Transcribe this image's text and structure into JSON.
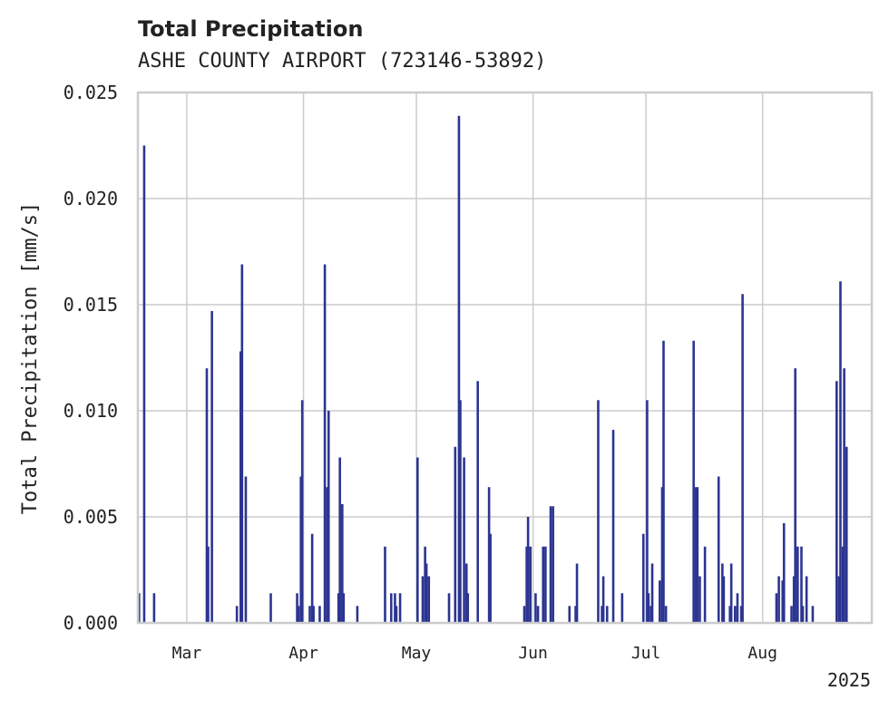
{
  "chart_data": {
    "type": "bar",
    "title": "Total Precipitation",
    "subtitle": "ASHE COUNTY AIRPORT (723146-53892)",
    "xlabel": "",
    "ylabel": "Total Precipitation [mm/s]",
    "x_year_label": "2025",
    "x_range": [
      "2025-02-16",
      "2025-08-29"
    ],
    "ylim": [
      0,
      0.025
    ],
    "yticks": [
      "0.000",
      "0.005",
      "0.010",
      "0.015",
      "0.020",
      "0.025"
    ],
    "xticks": [
      {
        "date": "2025-03-01",
        "label": "Mar"
      },
      {
        "date": "2025-04-01",
        "label": "Apr"
      },
      {
        "date": "2025-05-01",
        "label": "May"
      },
      {
        "date": "2025-06-01",
        "label": "Jun"
      },
      {
        "date": "2025-07-01",
        "label": "Jul"
      },
      {
        "date": "2025-08-01",
        "label": "Aug"
      }
    ],
    "grid": true,
    "series": [
      {
        "color": "#2c3590",
        "points": [
          [
            "2025-02-16",
            0.0014
          ],
          [
            "2025-02-17",
            0.0225
          ],
          [
            "2025-02-20",
            0.0014
          ],
          [
            "2025-03-06",
            0.0036
          ],
          [
            "2025-03-06",
            0.012
          ],
          [
            "2025-03-07",
            0.0147
          ],
          [
            "2025-03-14",
            0.0008
          ],
          [
            "2025-03-15",
            0.0169
          ],
          [
            "2025-03-15",
            0.0128
          ],
          [
            "2025-03-16",
            0.0069
          ],
          [
            "2025-03-23",
            0.0014
          ],
          [
            "2025-03-30",
            0.0008
          ],
          [
            "2025-03-30",
            0.0014
          ],
          [
            "2025-03-31",
            0.0105
          ],
          [
            "2025-03-31",
            0.0069
          ],
          [
            "2025-04-02",
            0.0008
          ],
          [
            "2025-04-03",
            0.0042
          ],
          [
            "2025-04-03",
            0.0008
          ],
          [
            "2025-04-05",
            0.0008
          ],
          [
            "2025-04-06",
            0.0169
          ],
          [
            "2025-04-07",
            0.0064
          ],
          [
            "2025-04-07",
            0.01
          ],
          [
            "2025-04-10",
            0.0014
          ],
          [
            "2025-04-10",
            0.0078
          ],
          [
            "2025-04-11",
            0.0056
          ],
          [
            "2025-04-11",
            0.0014
          ],
          [
            "2025-04-15",
            0.0008
          ],
          [
            "2025-04-22",
            0.0036
          ],
          [
            "2025-04-24",
            0.0014
          ],
          [
            "2025-04-25",
            0.0008
          ],
          [
            "2025-04-25",
            0.0014
          ],
          [
            "2025-04-26",
            0.0014
          ],
          [
            "2025-05-01",
            0.0078
          ],
          [
            "2025-05-02",
            0.0022
          ],
          [
            "2025-05-03",
            0.0036
          ],
          [
            "2025-05-03",
            0.0028
          ],
          [
            "2025-05-04",
            0.0022
          ],
          [
            "2025-05-09",
            0.0014
          ],
          [
            "2025-05-11",
            0.0083
          ],
          [
            "2025-05-12",
            0.0105
          ],
          [
            "2025-05-12",
            0.0239
          ],
          [
            "2025-05-13",
            0.0078
          ],
          [
            "2025-05-14",
            0.0028
          ],
          [
            "2025-05-14",
            0.0014
          ],
          [
            "2025-05-17",
            0.0114
          ],
          [
            "2025-05-20",
            0.0042
          ],
          [
            "2025-05-20",
            0.0064
          ],
          [
            "2025-05-29",
            0.0008
          ],
          [
            "2025-05-30",
            0.0036
          ],
          [
            "2025-05-30",
            0.005
          ],
          [
            "2025-05-31",
            0.0036
          ],
          [
            "2025-06-01",
            0.0014
          ],
          [
            "2025-06-02",
            0.0008
          ],
          [
            "2025-06-03",
            0.0036
          ],
          [
            "2025-06-04",
            0.0036
          ],
          [
            "2025-06-05",
            0.0055
          ],
          [
            "2025-06-06",
            0.0055
          ],
          [
            "2025-06-10",
            0.0008
          ],
          [
            "2025-06-12",
            0.0008
          ],
          [
            "2025-06-12",
            0.0028
          ],
          [
            "2025-06-18",
            0.0105
          ],
          [
            "2025-06-19",
            0.0022
          ],
          [
            "2025-06-19",
            0.0008
          ],
          [
            "2025-06-20",
            0.0008
          ],
          [
            "2025-06-22",
            0.0091
          ],
          [
            "2025-06-24",
            0.0014
          ],
          [
            "2025-06-30",
            0.0042
          ],
          [
            "2025-07-01",
            0.0014
          ],
          [
            "2025-07-01",
            0.0105
          ],
          [
            "2025-07-02",
            0.0028
          ],
          [
            "2025-07-02",
            0.0008
          ],
          [
            "2025-07-04",
            0.002
          ],
          [
            "2025-07-05",
            0.0064
          ],
          [
            "2025-07-05",
            0.0133
          ],
          [
            "2025-07-06",
            0.0008
          ],
          [
            "2025-07-13",
            0.0133
          ],
          [
            "2025-07-14",
            0.0064
          ],
          [
            "2025-07-14",
            0.0064
          ],
          [
            "2025-07-15",
            0.0022
          ],
          [
            "2025-07-16",
            0.0036
          ],
          [
            "2025-07-20",
            0.0069
          ],
          [
            "2025-07-21",
            0.0022
          ],
          [
            "2025-07-21",
            0.0028
          ],
          [
            "2025-07-23",
            0.0028
          ],
          [
            "2025-07-23",
            0.0008
          ],
          [
            "2025-07-24",
            0.0008
          ],
          [
            "2025-07-25",
            0.0014
          ],
          [
            "2025-07-26",
            0.0155
          ],
          [
            "2025-07-26",
            0.0008
          ],
          [
            "2025-08-04",
            0.0014
          ],
          [
            "2025-08-05",
            0.0022
          ],
          [
            "2025-08-06",
            0.0047
          ],
          [
            "2025-08-06",
            0.002
          ],
          [
            "2025-08-08",
            0.0008
          ],
          [
            "2025-08-09",
            0.0022
          ],
          [
            "2025-08-09",
            0.012
          ],
          [
            "2025-08-10",
            0.0036
          ],
          [
            "2025-08-11",
            0.0008
          ],
          [
            "2025-08-11",
            0.0036
          ],
          [
            "2025-08-12",
            0.0022
          ],
          [
            "2025-08-14",
            0.0008
          ],
          [
            "2025-08-20",
            0.0114
          ],
          [
            "2025-08-21",
            0.0022
          ],
          [
            "2025-08-21",
            0.0161
          ],
          [
            "2025-08-22",
            0.0036
          ],
          [
            "2025-08-22",
            0.012
          ],
          [
            "2025-08-23",
            0.0083
          ]
        ]
      }
    ]
  }
}
